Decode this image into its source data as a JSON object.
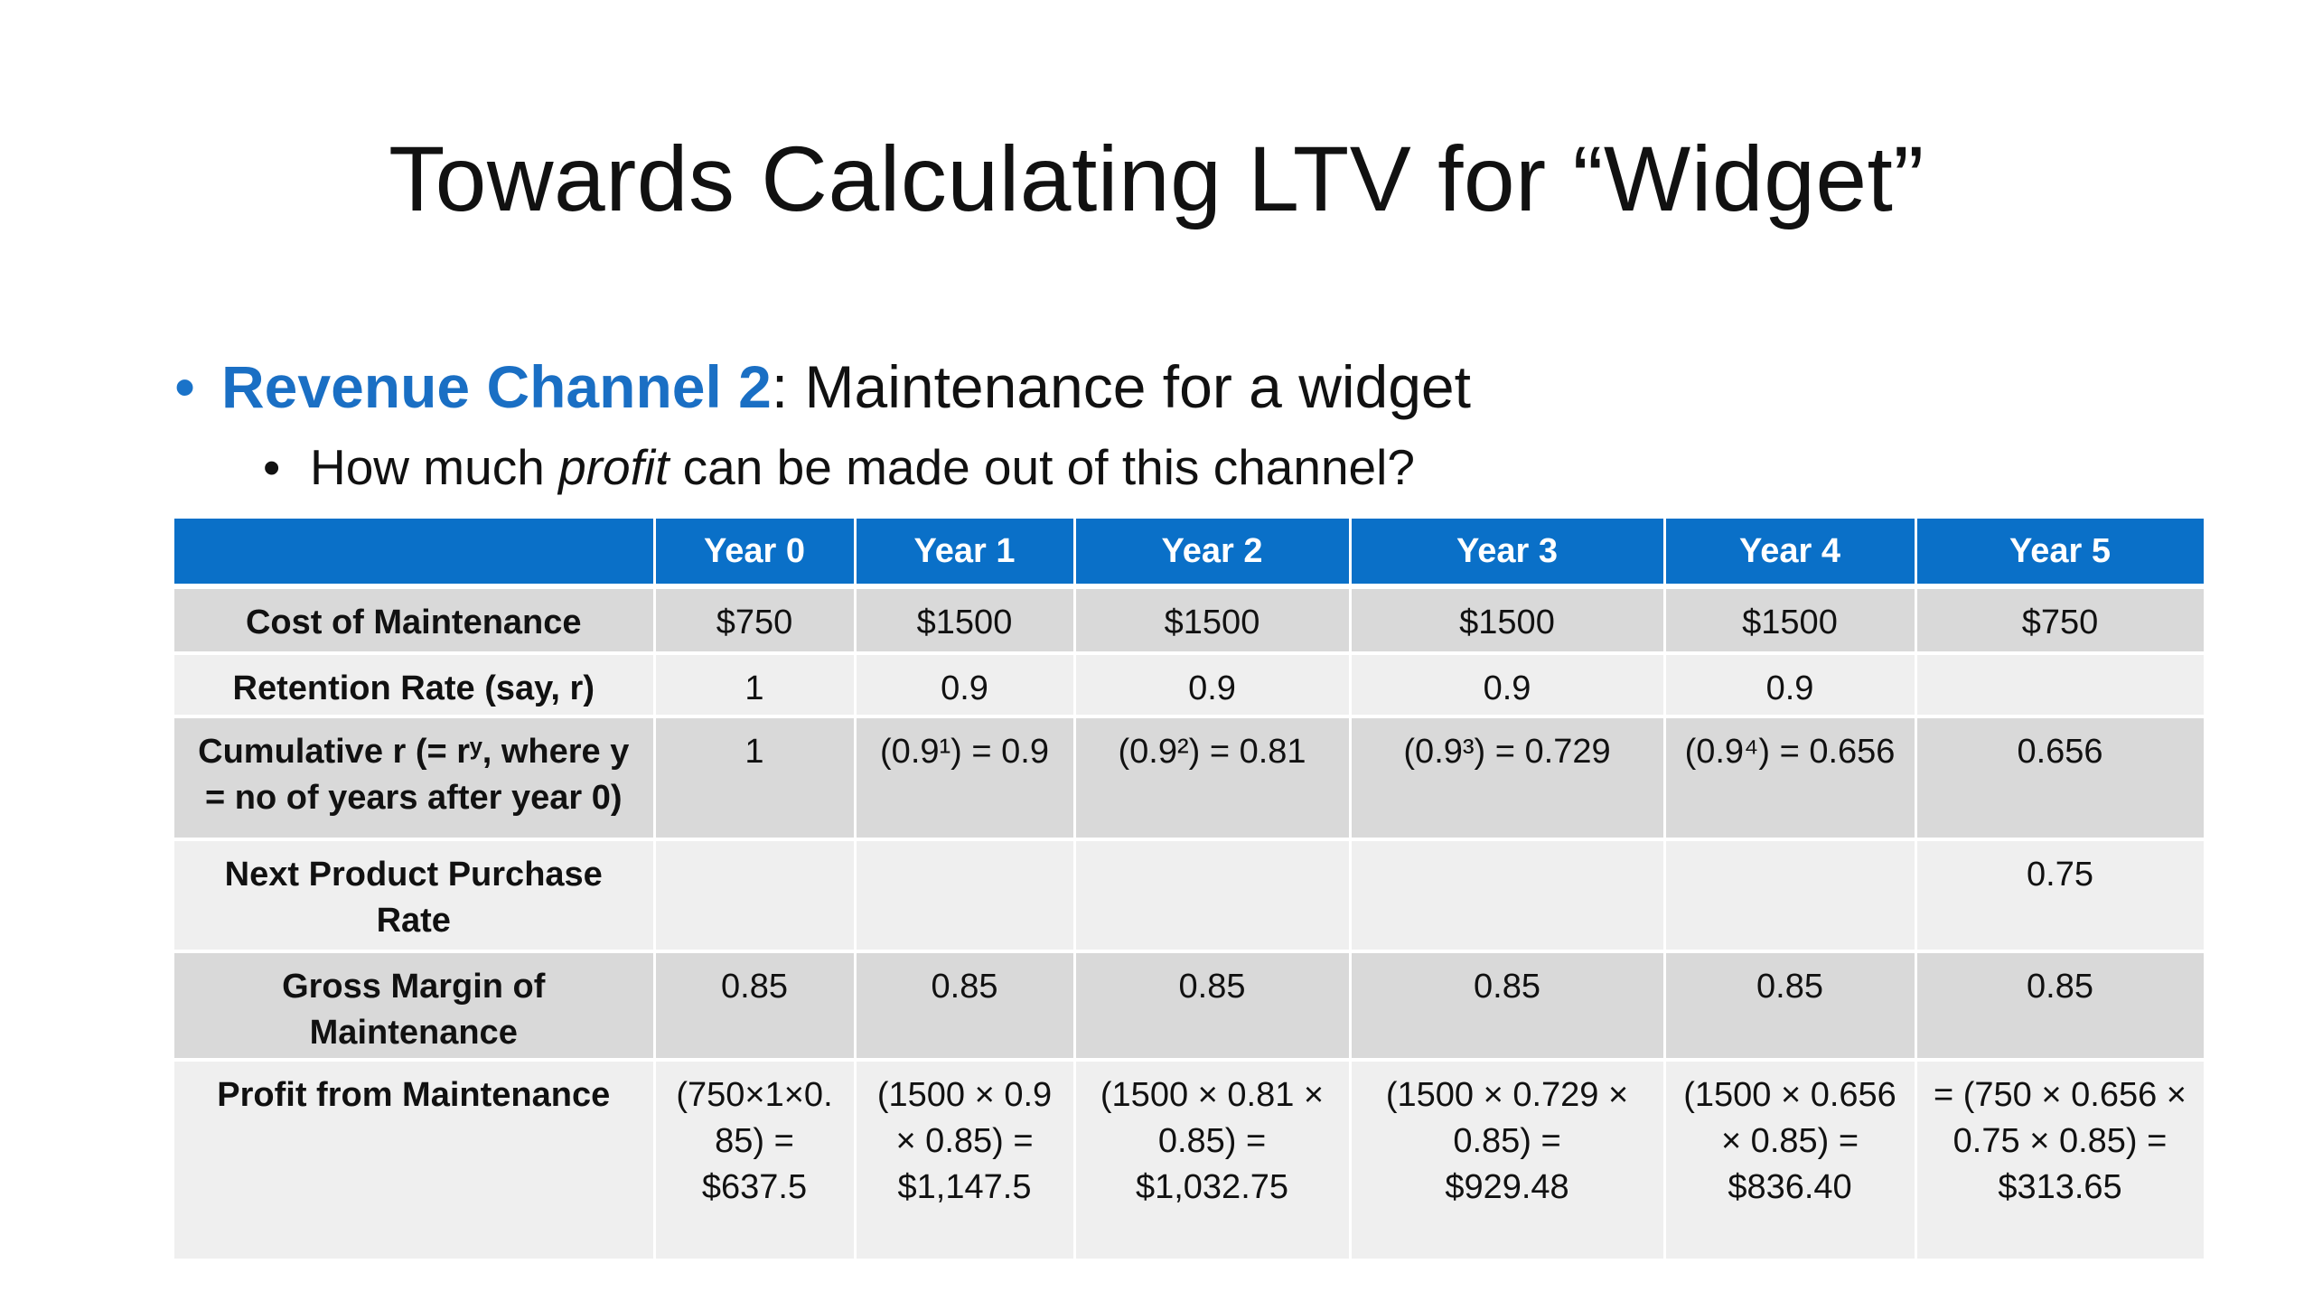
{
  "title": "Towards Calculating LTV for “Widget”",
  "bullet1": {
    "marker": "•",
    "highlight": "Revenue Channel 2",
    "rest": ": Maintenance for a widget"
  },
  "bullet2": {
    "marker": "•",
    "pre": "How much ",
    "emphasis": "profit",
    "post": " can be made out of this channel?"
  },
  "table": {
    "columns": [
      "",
      "Year 0",
      "Year 1",
      "Year 2",
      "Year 3",
      "Year 4",
      "Year 5"
    ],
    "rows": [
      {
        "label": [
          "Cost of Maintenance"
        ],
        "cells": [
          [
            "$750"
          ],
          [
            "$1500"
          ],
          [
            "$1500"
          ],
          [
            "$1500"
          ],
          [
            "$1500"
          ],
          [
            "$750"
          ]
        ]
      },
      {
        "label": [
          "Retention Rate (say, r)"
        ],
        "cells": [
          [
            "1"
          ],
          [
            "0.9"
          ],
          [
            "0.9"
          ],
          [
            "0.9"
          ],
          [
            "0.9"
          ],
          [
            ""
          ]
        ]
      },
      {
        "label": [
          "Cumulative r (= rʸ, where y",
          "= no of years after year 0)"
        ],
        "cells": [
          [
            "1"
          ],
          [
            "(0.9¹) = 0.9"
          ],
          [
            "(0.9²) = 0.81"
          ],
          [
            "(0.9³) = 0.729"
          ],
          [
            "(0.9⁴) = 0.656"
          ],
          [
            "0.656"
          ]
        ]
      },
      {
        "label": [
          "Next Product Purchase",
          "Rate"
        ],
        "cells": [
          [
            ""
          ],
          [
            ""
          ],
          [
            ""
          ],
          [
            ""
          ],
          [
            ""
          ],
          [
            "0.75"
          ]
        ]
      },
      {
        "label": [
          "Gross Margin of",
          "Maintenance"
        ],
        "cells": [
          [
            "0.85"
          ],
          [
            "0.85"
          ],
          [
            "0.85"
          ],
          [
            "0.85"
          ],
          [
            "0.85"
          ],
          [
            "0.85"
          ]
        ]
      },
      {
        "label": [
          "Profit from Maintenance"
        ],
        "cells": [
          [
            "(750×1×0.",
            "85) =",
            "$637.5"
          ],
          [
            "(1500 × 0.9",
            "× 0.85) =",
            "$1,147.5"
          ],
          [
            "(1500 × 0.81 ×",
            "0.85) =",
            "$1,032.75"
          ],
          [
            "(1500 × 0.729 ×",
            "0.85) =",
            "$929.48"
          ],
          [
            "(1500 × 0.656",
            "× 0.85) =",
            "$836.40"
          ],
          [
            "= (750 × 0.656 ×",
            "0.75 × 0.85) =",
            "$313.65"
          ]
        ]
      }
    ]
  }
}
